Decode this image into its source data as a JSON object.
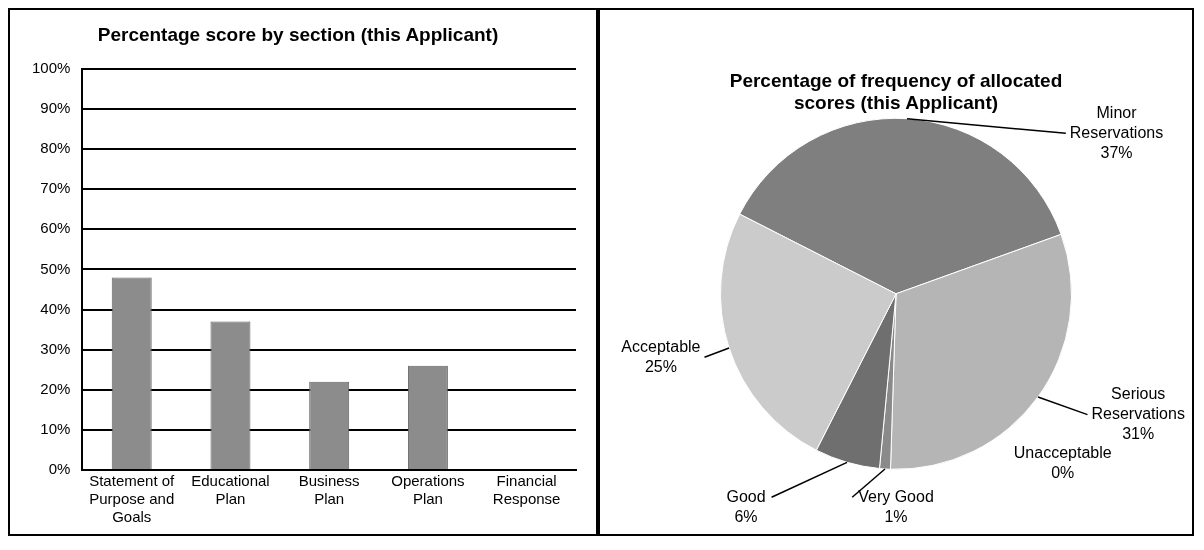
{
  "chart_data": [
    {
      "type": "bar",
      "title": "Percentage score by section (this Applicant)",
      "categories": [
        "Statement of Purpose and Goals",
        "Educational Plan",
        "Business Plan",
        "Operations Plan",
        "Financial Response"
      ],
      "values": [
        48,
        37,
        22,
        26,
        0
      ],
      "color": "#8c8c8c",
      "ylim": [
        0,
        100
      ],
      "yticks": [
        {
          "value": 0,
          "label": "0%"
        },
        {
          "value": 10,
          "label": "10%"
        },
        {
          "value": 20,
          "label": "20%"
        },
        {
          "value": 30,
          "label": "30%"
        },
        {
          "value": 40,
          "label": "40%"
        },
        {
          "value": 50,
          "label": "50%"
        },
        {
          "value": 60,
          "label": "60%"
        },
        {
          "value": 70,
          "label": "70%"
        },
        {
          "value": 80,
          "label": "80%"
        },
        {
          "value": 90,
          "label": "90%"
        },
        {
          "value": 100,
          "label": "100%"
        }
      ],
      "grid": "y",
      "legend": false
    },
    {
      "type": "pie",
      "title": "Percentage of frequency of allocated scores (this Applicant)",
      "categories": [
        "Minor Reservations",
        "Serious Reservations",
        "Unacceptable",
        "Very Good",
        "Good",
        "Acceptable"
      ],
      "values": [
        37,
        31,
        0,
        1,
        6,
        25
      ],
      "value_labels": [
        "37%",
        "31%",
        "0%",
        "1%",
        "6%",
        "25%"
      ],
      "colors": [
        "#7f7f7f",
        "#b5b5b5",
        "#9a9a9a",
        "#8a8a8a",
        "#6f6f6f",
        "#cbcbcb"
      ],
      "data_labels": true,
      "legend": false
    }
  ]
}
